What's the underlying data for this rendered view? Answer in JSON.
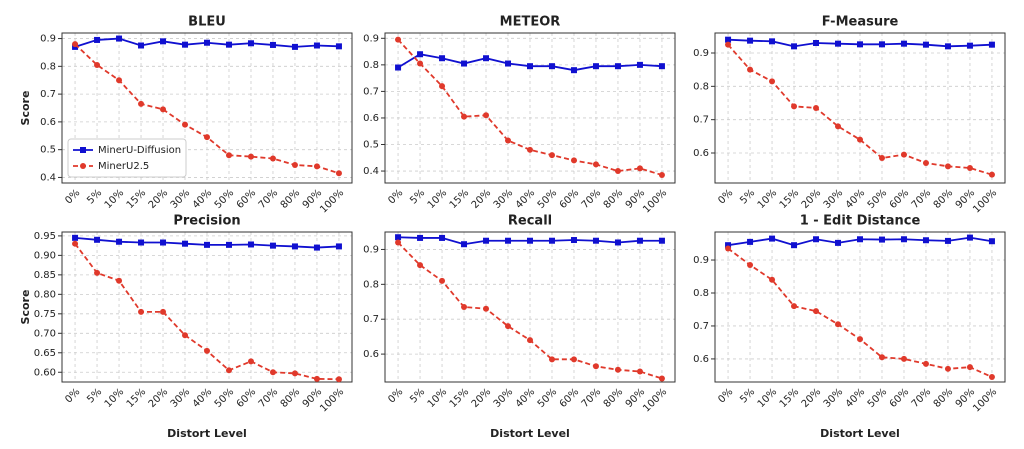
{
  "chart_data": [
    {
      "type": "line",
      "title": "BLEU",
      "ylabel": "Score",
      "legend": "lower left",
      "categories": [
        "0%",
        "5%",
        "10%",
        "15%",
        "20%",
        "30%",
        "40%",
        "50%",
        "60%",
        "70%",
        "80%",
        "90%",
        "100%"
      ],
      "ylim": [
        0.38,
        0.92
      ],
      "yticks": [
        0.4,
        0.5,
        0.6,
        0.7,
        0.8,
        0.9
      ],
      "grid": true,
      "series": [
        {
          "name": "MinerU-Diffusion",
          "color": "#1010d0",
          "values": [
            0.87,
            0.895,
            0.9,
            0.875,
            0.89,
            0.878,
            0.885,
            0.878,
            0.883,
            0.877,
            0.87,
            0.875,
            0.872
          ]
        },
        {
          "name": "MinerU2.5",
          "color": "#e0392b",
          "values": [
            0.88,
            0.805,
            0.75,
            0.665,
            0.645,
            0.59,
            0.545,
            0.48,
            0.475,
            0.468,
            0.445,
            0.44,
            0.415
          ]
        }
      ]
    },
    {
      "type": "line",
      "title": "METEOR",
      "categories": [
        "0%",
        "5%",
        "10%",
        "15%",
        "20%",
        "30%",
        "40%",
        "50%",
        "60%",
        "70%",
        "80%",
        "90%",
        "100%"
      ],
      "ylim": [
        0.355,
        0.92
      ],
      "yticks": [
        0.4,
        0.5,
        0.6,
        0.7,
        0.8,
        0.9
      ],
      "grid": true,
      "series": [
        {
          "color": "#1010d0",
          "values": [
            0.79,
            0.84,
            0.825,
            0.805,
            0.825,
            0.805,
            0.795,
            0.795,
            0.78,
            0.795,
            0.795,
            0.8,
            0.795
          ]
        },
        {
          "color": "#e0392b",
          "values": [
            0.895,
            0.805,
            0.72,
            0.605,
            0.61,
            0.515,
            0.48,
            0.46,
            0.44,
            0.425,
            0.4,
            0.41,
            0.385
          ]
        }
      ]
    },
    {
      "type": "line",
      "title": "F-Measure",
      "categories": [
        "0%",
        "5%",
        "10%",
        "15%",
        "20%",
        "30%",
        "40%",
        "50%",
        "60%",
        "70%",
        "80%",
        "90%",
        "100%"
      ],
      "ylim": [
        0.51,
        0.96
      ],
      "yticks": [
        0.6,
        0.7,
        0.8,
        0.9
      ],
      "grid": true,
      "series": [
        {
          "color": "#1010d0",
          "values": [
            0.94,
            0.937,
            0.935,
            0.92,
            0.93,
            0.928,
            0.926,
            0.926,
            0.928,
            0.925,
            0.92,
            0.922,
            0.925
          ]
        },
        {
          "color": "#e0392b",
          "values": [
            0.925,
            0.85,
            0.815,
            0.74,
            0.735,
            0.68,
            0.64,
            0.585,
            0.595,
            0.57,
            0.56,
            0.555,
            0.535
          ]
        }
      ]
    },
    {
      "type": "line",
      "title": "Precision",
      "ylabel": "Score",
      "xlabel": "Distort Level",
      "categories": [
        "0%",
        "5%",
        "10%",
        "15%",
        "20%",
        "30%",
        "40%",
        "50%",
        "60%",
        "70%",
        "80%",
        "90%",
        "100%"
      ],
      "ylim": [
        0.575,
        0.96
      ],
      "yticks": [
        {
          "value": 0.6,
          "label": "0.60"
        },
        0.65,
        {
          "value": 0.7,
          "label": "0.70"
        },
        0.75,
        {
          "value": 0.8,
          "label": "0.80"
        },
        0.85,
        {
          "value": 0.9,
          "label": "0.90"
        },
        0.95
      ],
      "grid": true,
      "series": [
        {
          "color": "#1010d0",
          "values": [
            0.945,
            0.94,
            0.935,
            0.933,
            0.933,
            0.93,
            0.927,
            0.927,
            0.928,
            0.925,
            0.923,
            0.92,
            0.923
          ]
        },
        {
          "color": "#e0392b",
          "values": [
            0.93,
            0.855,
            0.835,
            0.755,
            0.755,
            0.695,
            0.655,
            0.605,
            0.628,
            0.6,
            0.597,
            0.583,
            0.582
          ]
        }
      ]
    },
    {
      "type": "line",
      "title": "Recall",
      "xlabel": "Distort Level",
      "categories": [
        "0%",
        "5%",
        "10%",
        "15%",
        "20%",
        "30%",
        "40%",
        "50%",
        "60%",
        "70%",
        "80%",
        "90%",
        "100%"
      ],
      "ylim": [
        0.52,
        0.95
      ],
      "yticks": [
        0.6,
        0.7,
        0.8,
        0.9
      ],
      "grid": true,
      "series": [
        {
          "color": "#1010d0",
          "values": [
            0.935,
            0.933,
            0.933,
            0.915,
            0.925,
            0.925,
            0.925,
            0.925,
            0.927,
            0.925,
            0.92,
            0.925,
            0.925
          ]
        },
        {
          "color": "#e0392b",
          "values": [
            0.92,
            0.855,
            0.81,
            0.735,
            0.73,
            0.68,
            0.64,
            0.585,
            0.585,
            0.565,
            0.555,
            0.55,
            0.53
          ]
        }
      ]
    },
    {
      "type": "line",
      "title": "1 - Edit Distance",
      "xlabel": "Distort Level",
      "categories": [
        "0%",
        "5%",
        "10%",
        "15%",
        "20%",
        "30%",
        "40%",
        "50%",
        "60%",
        "70%",
        "80%",
        "90%",
        "100%"
      ],
      "ylim": [
        0.53,
        0.985
      ],
      "yticks": [
        0.6,
        0.7,
        0.8,
        0.9
      ],
      "grid": true,
      "series": [
        {
          "color": "#1010d0",
          "values": [
            0.945,
            0.955,
            0.965,
            0.945,
            0.963,
            0.952,
            0.963,
            0.962,
            0.963,
            0.96,
            0.958,
            0.968,
            0.957
          ]
        },
        {
          "color": "#e0392b",
          "values": [
            0.935,
            0.885,
            0.84,
            0.76,
            0.745,
            0.705,
            0.66,
            0.605,
            0.6,
            0.585,
            0.57,
            0.575,
            0.545
          ]
        }
      ]
    }
  ]
}
